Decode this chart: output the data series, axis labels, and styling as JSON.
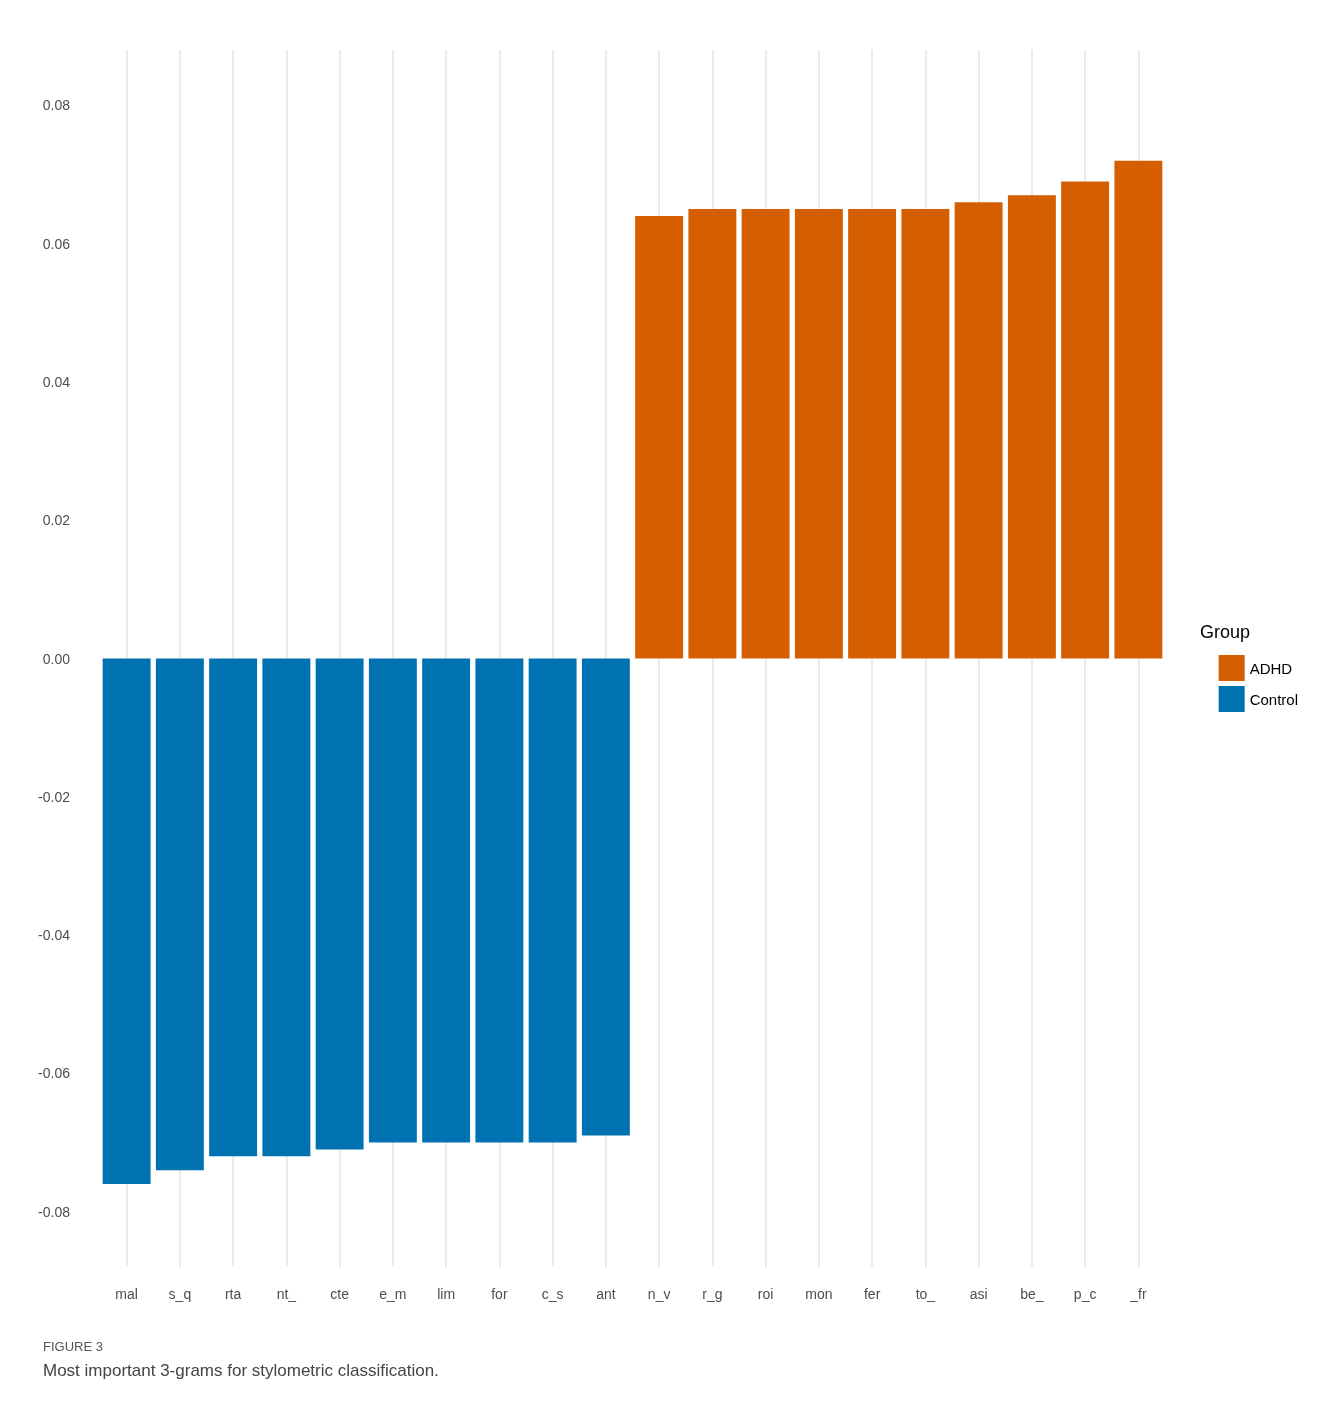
{
  "chart_data": {
    "type": "bar",
    "stacked": true,
    "categories": [
      "mal",
      "s_q",
      "rta",
      "nt_",
      "cte",
      "e_m",
      "lim",
      "for",
      "c_s",
      "ant",
      "n_v",
      "r_g",
      "roi",
      "mon",
      "fer",
      "to_",
      "asi",
      "be_",
      "p_c",
      "_fr"
    ],
    "series": [
      {
        "name": "ADHD",
        "color": "#d55e00",
        "values": [
          null,
          null,
          null,
          null,
          null,
          null,
          null,
          null,
          null,
          null,
          0.064,
          0.065,
          0.065,
          0.065,
          0.065,
          0.065,
          0.066,
          0.067,
          0.069,
          0.072
        ]
      },
      {
        "name": "Control",
        "color": "#0072b2",
        "values": [
          -0.076,
          -0.074,
          -0.072,
          -0.072,
          -0.071,
          -0.07,
          -0.07,
          -0.07,
          -0.07,
          -0.069,
          null,
          null,
          null,
          null,
          null,
          null,
          null,
          null,
          null,
          null
        ]
      }
    ],
    "ylim": [
      -0.088,
      0.088
    ],
    "yticks": [
      -0.08,
      -0.06,
      -0.04,
      -0.02,
      {
        "value": 0,
        "label": "0.00"
      },
      0.02,
      0.04,
      0.06,
      0.08
    ],
    "grid": "x",
    "legend": "right",
    "legend_title": "Group",
    "annotations": [
      "FIGURE 3",
      "Most important 3-grams for stylometric classification."
    ]
  }
}
